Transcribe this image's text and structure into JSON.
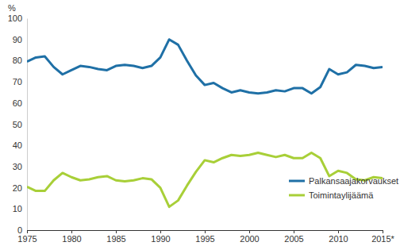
{
  "chart_data": {
    "type": "line",
    "ylabel": "%",
    "x": [
      1975,
      1976,
      1977,
      1978,
      1979,
      1980,
      1981,
      1982,
      1983,
      1984,
      1985,
      1986,
      1987,
      1988,
      1989,
      1990,
      1991,
      1992,
      1993,
      1994,
      1995,
      1996,
      1997,
      1998,
      1999,
      2000,
      2001,
      2002,
      2003,
      2004,
      2005,
      2006,
      2007,
      2008,
      2009,
      2010,
      2011,
      2012,
      2013,
      2014,
      2015
    ],
    "series": [
      {
        "name": "Palkansaajakorvaukset",
        "color": "#1f70a6",
        "values": [
          79.5,
          81.5,
          82,
          77,
          73.5,
          75.5,
          77.5,
          77,
          76,
          75.5,
          77.5,
          78,
          77.5,
          76.5,
          77.5,
          81.5,
          90,
          87.5,
          80,
          73,
          68.5,
          69.5,
          67,
          65,
          66,
          65,
          64.5,
          65,
          66,
          65.5,
          67,
          67,
          64.5,
          67.5,
          76,
          73.5,
          74.5,
          78,
          77.5,
          76.5,
          77
        ]
      },
      {
        "name": "Toimintaylijäämä",
        "color": "#a8cf38",
        "values": [
          20.5,
          18.5,
          18.5,
          23.5,
          27,
          25,
          23.5,
          24,
          25,
          25.5,
          23.5,
          23,
          23.5,
          24.5,
          24,
          20,
          11,
          14,
          21,
          27.5,
          33,
          32,
          34,
          35.5,
          35,
          35.5,
          36.5,
          35.5,
          34.5,
          35.5,
          34,
          34,
          36.5,
          34,
          25.5,
          28,
          27,
          24,
          23.5,
          25,
          24.5
        ]
      }
    ],
    "xlim": [
      1975,
      2015
    ],
    "xticks": [
      1975,
      1980,
      1985,
      1990,
      1995,
      2000,
      2005,
      2010,
      {
        "value": 2015,
        "label": "2015*"
      }
    ],
    "ylim": [
      0,
      100
    ],
    "yticks": [
      0,
      10,
      20,
      30,
      40,
      50,
      60,
      70,
      80,
      90,
      100
    ],
    "grid": false,
    "legend": "bottom-right"
  }
}
